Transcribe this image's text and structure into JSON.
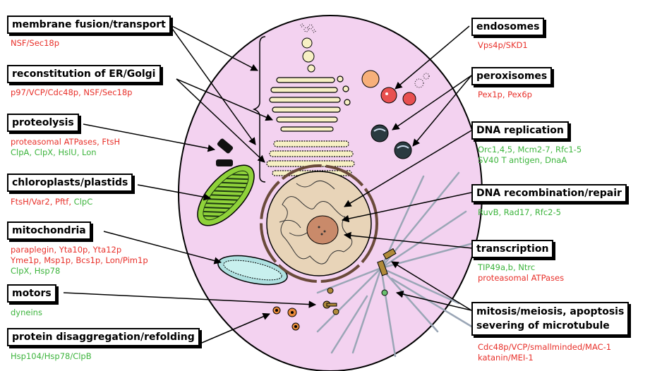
{
  "labels": {
    "membrane": "membrane fusion/transport",
    "er": "reconstitution of ER/Golgi",
    "proteolysis": "proteolysis",
    "chloroplasts": "chloroplasts/plastids",
    "mitochondria": "mitochondria",
    "motors": "motors",
    "disaggregation": "protein disaggregation/refolding",
    "endosomes": "endosomes",
    "peroxisomes": "peroxisomes",
    "dna_replication": "DNA replication",
    "dna_recombination": "DNA recombination/repair",
    "transcription": "transcription",
    "mitosis_line1": "mitosis/meiosis, apoptosis",
    "mitosis_line2": "severing of microtubule"
  },
  "proteins": {
    "membrane": "NSF/Sec18p",
    "er_1": "p97/VCP/Cdc48p,",
    "er_2": "NSF/Sec18p",
    "proteolysis_1a": "proteasomal ATPases,",
    "proteolysis_1b": "FtsH",
    "proteolysis_2a": "ClpA,",
    "proteolysis_2b": "ClpX,",
    "proteolysis_2c": "HslU,",
    "proteolysis_2d": "Lon",
    "chloroplasts_a": "FtsH/Var2,",
    "chloroplasts_b": "Pftf,",
    "chloroplasts_c": "ClpC",
    "mito_1a": "paraplegin,",
    "mito_1b": "Yta10p,",
    "mito_1c": "Yta12p",
    "mito_2a": "Yme1p,",
    "mito_2b": "Msp1p,",
    "mito_2c": "Bcs1p,",
    "mito_2d": "Lon/Pim1p",
    "mito_3a": "ClpX,",
    "mito_3b": "Hsp78",
    "motors": "dyneins",
    "disaggregation": "Hsp104/Hsp78/ClpB",
    "endosomes": "Vps4p/SKD1",
    "peroxisomes_a": "Pex1p,",
    "peroxisomes_b": "Pex6p",
    "dnarep_1a": "Orc1,4,5,",
    "dnarep_1b": "Mcm2-7,",
    "dnarep_1c": "Rfc1-5",
    "dnarep_2a": "SV40 T antigen,",
    "dnarep_2b": "DnaA",
    "dnarec_a": "RuvB,",
    "dnarec_b": "Rad17,",
    "dnarec_c": "Rfc2-5",
    "transcription_1": "TIP49a,b, Ntrc",
    "transcription_2": "proteasomal  ATPases",
    "mitosis_1": "Cdc48p/VCP/smallminded/MAC-1",
    "mitosis_2": "katanin/MEI-1"
  },
  "colors": {
    "red_text": "#e8302a",
    "green_text": "#3cb43c",
    "cell_fill": "#f3d2f0",
    "golgi_fill": "#f7f0c4",
    "chloroplast": "#8fd23a",
    "mitochondrion": "#aee0e0",
    "nucleus": "#e8d4b8",
    "nucleolus": "#c98a6a"
  }
}
